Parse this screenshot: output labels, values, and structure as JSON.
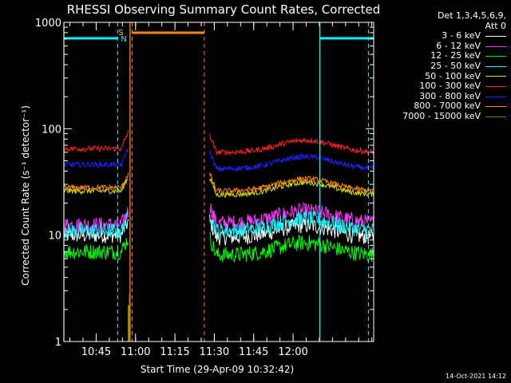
{
  "chart_data": {
    "type": "line",
    "title": "RHESSI Observing Summary Count Rates, Corrected",
    "ylabel": "Corrected Count Rate (s⁻¹ detector⁻¹)",
    "xlabel": "Start Time (29-Apr-09 10:32:42)",
    "yscale": "log",
    "ylim": [
      1,
      1000
    ],
    "xlim_minutes": [
      0,
      118
    ],
    "y_ticks": [
      {
        "value": 1,
        "label": "1"
      },
      {
        "value": 10,
        "label": "10"
      },
      {
        "value": 100,
        "label": "100"
      },
      {
        "value": 1000,
        "label": "1000"
      }
    ],
    "x_ticks": [
      {
        "label": "10:45",
        "minute": 12.3
      },
      {
        "label": "11:00",
        "minute": 27.3
      },
      {
        "label": "11:15",
        "minute": 42.3
      },
      {
        "label": "11:30",
        "minute": 57.3
      },
      {
        "label": "11:45",
        "minute": 72.3
      },
      {
        "label": "12:00",
        "minute": 87.3
      }
    ],
    "legend_header": [
      "Det 1,3,4,5,6,9,",
      "Att 0"
    ],
    "series": [
      {
        "name": "3 - 6 keV",
        "color": "#ffffff",
        "level_before": 10,
        "level_after": 9.5,
        "gap": [
          24.5,
          55.5
        ]
      },
      {
        "name": "6 - 12 keV",
        "color": "#ff33ff",
        "level_before": 12.5,
        "level_after": 13,
        "gap": [
          24.5,
          55.5
        ]
      },
      {
        "name": "12 - 25 keV",
        "color": "#00ff00",
        "level_before": 7,
        "level_after": 6.5,
        "gap": [
          24.5,
          55.5
        ]
      },
      {
        "name": "25 - 50 keV",
        "color": "#00ffff",
        "level_before": 11,
        "level_after": 11,
        "gap": [
          24.5,
          55.5
        ]
      },
      {
        "name": "50 - 100 keV",
        "color": "#dddd00",
        "level_before": 26,
        "level_after": 24,
        "gap": [
          24.5,
          55.5
        ]
      },
      {
        "name": "100 - 300 keV",
        "color": "#ff2020",
        "level_before": 65,
        "level_after": 60,
        "gap": [
          24.5,
          55.5
        ]
      },
      {
        "name": "300 - 800 keV",
        "color": "#2020ff",
        "level_before": 46,
        "level_after": 42,
        "gap": [
          24.5,
          55.5
        ]
      },
      {
        "name": "800 - 7000 keV",
        "color": "#ff8800",
        "level_before": 28,
        "level_after": 26,
        "gap": [
          24.5,
          55.5
        ]
      },
      {
        "name": "7000 - 15000 keV",
        "color": "#668800",
        "level_before": null,
        "level_after": null,
        "gap": null
      }
    ],
    "annotations": {
      "saa_label": "S",
      "night_label": "N",
      "cyan_bar_segments": [
        [
          0,
          20.5
        ],
        [
          97.5,
          118
        ]
      ],
      "orange_bar_segment": [
        26,
        53.5
      ],
      "cyan_dashed_lines": [
        20.5,
        116
      ],
      "cyan_solid_lines": [
        0,
        97.5
      ],
      "orange_dashed_lines": [
        26,
        53.5
      ],
      "orange_solid_lines": [
        25.2
      ]
    }
  },
  "footer": {
    "date": "14-Oct-2021 14:12"
  }
}
